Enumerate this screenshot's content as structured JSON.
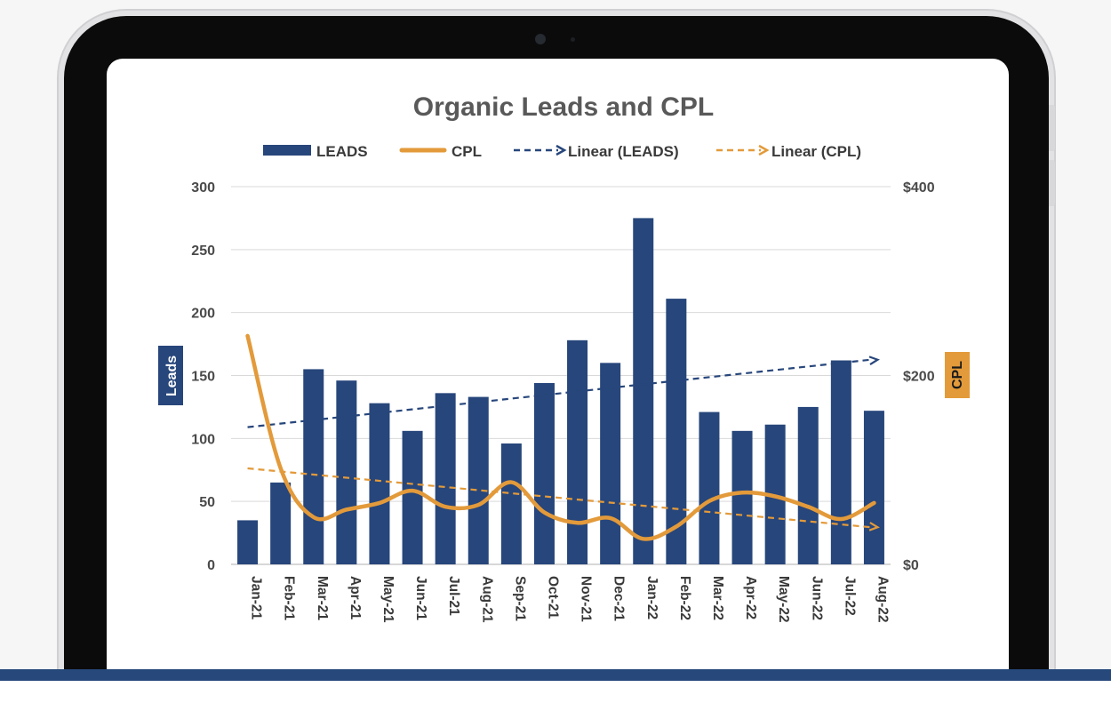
{
  "chart_data": {
    "type": "bar",
    "title": "Organic Leads and CPL",
    "categories": [
      "Jan-21",
      "Feb-21",
      "Mar-21",
      "Apr-21",
      "May-21",
      "Jun-21",
      "Jul-21",
      "Aug-21",
      "Sep-21",
      "Oct-21",
      "Nov-21",
      "Dec-21",
      "Jan-22",
      "Feb-22",
      "Mar-22",
      "Apr-22",
      "May-22",
      "Jun-22",
      "Jul-22",
      "Aug-22"
    ],
    "series": [
      {
        "name": "LEADS",
        "type": "bar",
        "axis": "left",
        "values": [
          35,
          65,
          155,
          146,
          128,
          106,
          136,
          133,
          96,
          144,
          178,
          160,
          275,
          211,
          121,
          106,
          111,
          125,
          162,
          122
        ]
      },
      {
        "name": "CPL",
        "type": "line",
        "axis": "right",
        "values": [
          242,
          102,
          50,
          58,
          65,
          78,
          61,
          63,
          87,
          55,
          44,
          49,
          27,
          40,
          67,
          76,
          72,
          61,
          48,
          65
        ]
      },
      {
        "name": "Linear (LEADS)",
        "type": "trendline",
        "of": "LEADS"
      },
      {
        "name": "Linear (CPL)",
        "type": "trendline",
        "of": "CPL"
      }
    ],
    "y_left": {
      "label": "Leads",
      "ylim": [
        0,
        300
      ],
      "ticks": [
        "0",
        "50",
        "100",
        "150",
        "200",
        "250",
        "300"
      ]
    },
    "y_right": {
      "label": "CPL",
      "ylim": [
        0,
        400
      ],
      "ticks": [
        "$0",
        "$200",
        "$400"
      ]
    },
    "legend": "top",
    "grid": true,
    "colors": {
      "leads": "#27467b",
      "cpl": "#e39a3a",
      "grid": "#d9d9d9"
    }
  }
}
